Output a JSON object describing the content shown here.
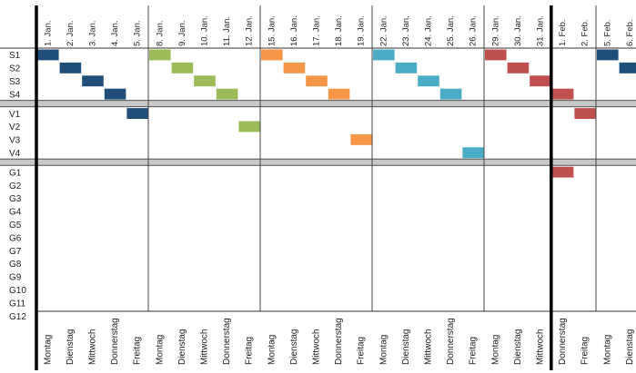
{
  "chart_data": {
    "type": "heatmap",
    "title": "",
    "dates": [
      "1. Jan.",
      "2. Jan.",
      "3. Jan.",
      "4. Jan.",
      "5. Jan.",
      "8. Jan.",
      "9. Jan.",
      "10. Jan.",
      "11. Jan.",
      "12. Jan.",
      "15. Jan.",
      "16. Jan.",
      "17. Jan.",
      "18. Jan.",
      "19. Jan.",
      "22. Jan.",
      "23. Jan.",
      "24. Jan.",
      "25. Jan.",
      "26. Jan.",
      "29. Jan.",
      "30. Jan.",
      "31. Jan.",
      "1. Feb.",
      "2. Feb.",
      "5. Feb.",
      "6. Feb."
    ],
    "weekdays": [
      "Montag",
      "Dienstag",
      "Mittwoch",
      "Donnerstag",
      "Freitag",
      "Montag",
      "Dienstag",
      "Mittwoch",
      "Donnerstag",
      "Freitag",
      "Montag",
      "Dienstag",
      "Mittwoch",
      "Donnerstag",
      "Freitag",
      "Montag",
      "Dienstag",
      "Mittwoch",
      "Donnerstag",
      "Freitag",
      "Montag",
      "Dienstag",
      "Mittwoch",
      "Donnerstag",
      "Freitag",
      "Montag",
      "Dienstag"
    ],
    "groups": [
      {
        "rows": [
          "S1",
          "S2",
          "S3",
          "S4"
        ]
      },
      {
        "rows": [
          "V1",
          "V2",
          "V3",
          "V4"
        ]
      },
      {
        "rows": [
          "G1",
          "G2",
          "G3",
          "G4",
          "G5",
          "G6",
          "G7",
          "G8",
          "G9",
          "G10",
          "G11",
          "G12"
        ]
      }
    ],
    "week_colors": [
      "#1f4e79",
      "#9bbb59",
      "#f79646",
      "#4bacc6",
      "#c0504d",
      "#1f4e79"
    ],
    "month_boundary_after_date": "31. Jan.",
    "cells": [
      {
        "row": "S1",
        "date": "1. Jan."
      },
      {
        "row": "S2",
        "date": "2. Jan."
      },
      {
        "row": "S3",
        "date": "3. Jan."
      },
      {
        "row": "S4",
        "date": "4. Jan."
      },
      {
        "row": "V1",
        "date": "5. Jan."
      },
      {
        "row": "S1",
        "date": "8. Jan."
      },
      {
        "row": "S2",
        "date": "9. Jan."
      },
      {
        "row": "S3",
        "date": "10. Jan."
      },
      {
        "row": "S4",
        "date": "11. Jan."
      },
      {
        "row": "V2",
        "date": "12. Jan."
      },
      {
        "row": "S1",
        "date": "15. Jan."
      },
      {
        "row": "S2",
        "date": "16. Jan."
      },
      {
        "row": "S3",
        "date": "17. Jan."
      },
      {
        "row": "S4",
        "date": "18. Jan."
      },
      {
        "row": "V3",
        "date": "19. Jan."
      },
      {
        "row": "S1",
        "date": "22. Jan."
      },
      {
        "row": "S2",
        "date": "23. Jan."
      },
      {
        "row": "S3",
        "date": "24. Jan."
      },
      {
        "row": "S4",
        "date": "25. Jan."
      },
      {
        "row": "V4",
        "date": "26. Jan."
      },
      {
        "row": "S1",
        "date": "29. Jan."
      },
      {
        "row": "S2",
        "date": "30. Jan."
      },
      {
        "row": "S3",
        "date": "31. Jan."
      },
      {
        "row": "S4",
        "date": "1. Feb."
      },
      {
        "row": "G1",
        "date": "1. Feb."
      },
      {
        "row": "V1",
        "date": "2. Feb."
      },
      {
        "row": "S1",
        "date": "5. Feb."
      },
      {
        "row": "S2",
        "date": "6. Feb."
      }
    ]
  }
}
